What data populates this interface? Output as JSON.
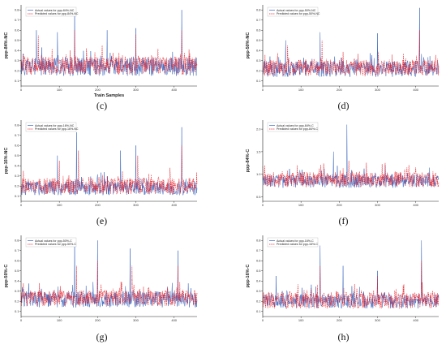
{
  "colors": {
    "actual": "#3a66c0",
    "predicted": "#e8202a",
    "axis": "#222222"
  },
  "chart_data": [
    {
      "type": "line",
      "caption": "(c)",
      "xlabel": "Train Samples",
      "ylabel": "ppp-84%-NC",
      "xlim": [
        0,
        460
      ],
      "ylim": [
        0.05,
        0.85
      ],
      "xticks": [
        0,
        100,
        200,
        300,
        400
      ],
      "yticks": [
        0.1,
        0.2,
        0.3,
        0.4,
        0.5,
        0.6,
        0.7,
        0.8
      ],
      "legend_position": "top-left",
      "series": [
        {
          "name": "Actual values for ppp-84%-NC",
          "style": "solid",
          "base": 0.24,
          "noise": 0.09,
          "seed": 11,
          "peaks": [
            [
              40,
              0.6
            ],
            [
              95,
              0.58
            ],
            [
              140,
              0.75
            ],
            [
              225,
              0.6
            ],
            [
              300,
              0.62
            ],
            [
              420,
              0.8
            ]
          ]
        },
        {
          "name": "Predicted values for ppp-84%-NC",
          "style": "dashed",
          "base": 0.25,
          "noise": 0.09,
          "seed": 12,
          "peaks": [
            [
              45,
              0.55
            ],
            [
              140,
              0.6
            ],
            [
              300,
              0.56
            ],
            [
              420,
              0.6
            ]
          ]
        }
      ]
    },
    {
      "type": "line",
      "caption": "(d)",
      "xlabel": "",
      "ylabel": "ppp-50%-NC",
      "xlim": [
        0,
        460
      ],
      "ylim": [
        0.05,
        0.85
      ],
      "xticks": [
        0,
        100,
        200,
        300,
        400
      ],
      "yticks": [
        0.1,
        0.2,
        0.3,
        0.4,
        0.5,
        0.6,
        0.7,
        0.8
      ],
      "legend_position": "top-left",
      "series": [
        {
          "name": "Actual values for ppp-50%-NC",
          "style": "solid",
          "base": 0.22,
          "noise": 0.08,
          "seed": 21,
          "peaks": [
            [
              60,
              0.5
            ],
            [
              150,
              0.58
            ],
            [
              300,
              0.57
            ],
            [
              410,
              0.82
            ]
          ]
        },
        {
          "name": "Predicted values for ppp-50%-NC",
          "style": "dashed",
          "base": 0.23,
          "noise": 0.08,
          "seed": 22,
          "peaks": [
            [
              65,
              0.45
            ],
            [
              155,
              0.5
            ],
            [
              410,
              0.6
            ]
          ]
        }
      ]
    },
    {
      "type": "line",
      "caption": "(e)",
      "xlabel": "",
      "ylabel": "ppp-16%-NC",
      "xlim": [
        0,
        460
      ],
      "ylim": [
        0.05,
        0.85
      ],
      "xticks": [
        0,
        100,
        200,
        300,
        400
      ],
      "yticks": [
        0.1,
        0.2,
        0.3,
        0.4,
        0.5,
        0.6,
        0.7,
        0.8
      ],
      "legend_position": "top-left",
      "series": [
        {
          "name": "Actual values for ppp-16%-NC",
          "style": "solid",
          "base": 0.18,
          "noise": 0.07,
          "seed": 31,
          "peaks": [
            [
              95,
              0.5
            ],
            [
              145,
              0.73
            ],
            [
              260,
              0.55
            ],
            [
              300,
              0.6
            ],
            [
              420,
              0.78
            ]
          ]
        },
        {
          "name": "Predicted values for ppp-16%-NC",
          "style": "dashed",
          "base": 0.2,
          "noise": 0.08,
          "seed": 32,
          "peaks": [
            [
              100,
              0.45
            ],
            [
              150,
              0.55
            ],
            [
              305,
              0.5
            ],
            [
              420,
              0.6
            ]
          ]
        }
      ]
    },
    {
      "type": "line",
      "caption": "(f)",
      "xlabel": "",
      "ylabel": "ppp-84%-C",
      "xlim": [
        0,
        460
      ],
      "ylim": [
        0.4,
        2.2
      ],
      "xticks": [
        0,
        100,
        200,
        300,
        400
      ],
      "yticks": [
        0.5,
        1.0,
        1.5,
        2.0
      ],
      "legend_position": "top-left",
      "series": [
        {
          "name": "Actual values for ppp-84%-C",
          "style": "solid",
          "base": 0.85,
          "noise": 0.15,
          "seed": 41,
          "peaks": [
            [
              185,
              1.5
            ],
            [
              220,
              2.1
            ],
            [
              320,
              1.2
            ]
          ]
        },
        {
          "name": "Predicted values for ppp-84%-C",
          "style": "dashed",
          "base": 0.88,
          "noise": 0.17,
          "seed": 42,
          "peaks": [
            [
              90,
              1.2
            ],
            [
              160,
              1.2
            ],
            [
              225,
              1.3
            ],
            [
              320,
              1.25
            ],
            [
              400,
              1.15
            ]
          ]
        }
      ]
    },
    {
      "type": "line",
      "caption": "(g)",
      "xlabel": "",
      "ylabel": "ppp-50%-C",
      "xlim": [
        0,
        460
      ],
      "ylim": [
        0.05,
        0.85
      ],
      "xticks": [
        0,
        100,
        200,
        300,
        400
      ],
      "yticks": [
        0.1,
        0.2,
        0.3,
        0.4,
        0.5,
        0.6,
        0.7,
        0.8
      ],
      "legend_position": "top-left",
      "series": [
        {
          "name": "Actual values for ppp-50%-C",
          "style": "solid",
          "base": 0.22,
          "noise": 0.08,
          "seed": 51,
          "peaks": [
            [
              140,
              0.75
            ],
            [
              200,
              0.8
            ],
            [
              285,
              0.72
            ],
            [
              410,
              0.7
            ]
          ]
        },
        {
          "name": "Predicted values for ppp-50%-C",
          "style": "dashed",
          "base": 0.23,
          "noise": 0.08,
          "seed": 52,
          "peaks": [
            [
              145,
              0.55
            ],
            [
              200,
              0.6
            ],
            [
              290,
              0.55
            ],
            [
              410,
              0.55
            ]
          ]
        }
      ]
    },
    {
      "type": "line",
      "caption": "(h)",
      "xlabel": "",
      "ylabel": "ppp-16%-C",
      "xlim": [
        0,
        460
      ],
      "ylim": [
        0.05,
        0.85
      ],
      "xticks": [
        0,
        100,
        200,
        300,
        400
      ],
      "yticks": [
        0.1,
        0.2,
        0.3,
        0.4,
        0.5,
        0.6,
        0.7,
        0.8
      ],
      "legend_position": "top-left",
      "series": [
        {
          "name": "Actual values for ppp-16%-C",
          "style": "solid",
          "base": 0.2,
          "noise": 0.07,
          "seed": 61,
          "peaks": [
            [
              35,
              0.45
            ],
            [
              150,
              0.75
            ],
            [
              210,
              0.55
            ],
            [
              300,
              0.5
            ],
            [
              415,
              0.8
            ]
          ]
        },
        {
          "name": "Predicted values for ppp-16%-C",
          "style": "dashed",
          "base": 0.21,
          "noise": 0.08,
          "seed": 62,
          "peaks": [
            [
              150,
              0.55
            ],
            [
              300,
              0.45
            ],
            [
              415,
              0.6
            ]
          ]
        }
      ]
    }
  ]
}
